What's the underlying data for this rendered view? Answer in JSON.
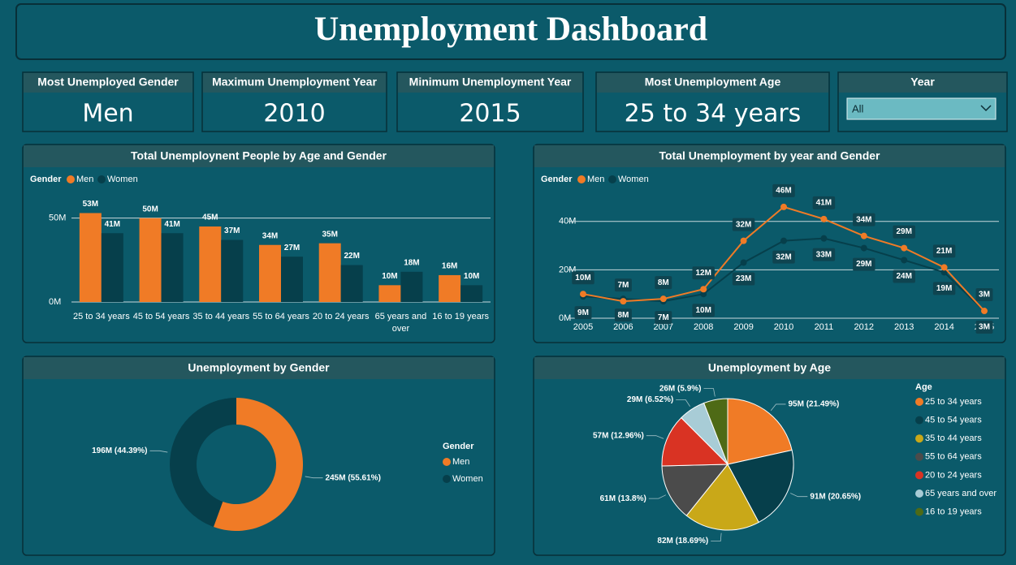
{
  "header": {
    "title": "Unemployment Dashboard"
  },
  "cards": [
    {
      "label": "Most Unemployed Gender",
      "value": "Men"
    },
    {
      "label": "Maximum Unemployment Year",
      "value": "2010"
    },
    {
      "label": "Minimum Unemployment Year",
      "value": "2015"
    },
    {
      "label": "Most Unemployment Age",
      "value": "25 to 34 years"
    }
  ],
  "slicer": {
    "label": "Year",
    "value": "All"
  },
  "chart_data": [
    {
      "type": "bar",
      "title": "Total Unemploynent People by Age and Gender",
      "legend_title": "Gender",
      "categories": [
        "25 to 34 years",
        "45 to 54 years",
        "35 to 44 years",
        "55 to 64 years",
        "20 to 24 years",
        "65 years and over",
        "16 to 19 years"
      ],
      "series": [
        {
          "name": "Men",
          "color": "#f07b26",
          "values": [
            53000000,
            50000000,
            45000000,
            34000000,
            35000000,
            10000000,
            16000000
          ],
          "value_labels": [
            "53M",
            "50M",
            "45M",
            "34M",
            "35M",
            "10M",
            "16M"
          ]
        },
        {
          "name": "Women",
          "color": "#063f4b",
          "values": [
            41000000,
            41000000,
            37000000,
            27000000,
            22000000,
            18000000,
            10000000
          ],
          "value_labels": [
            "41M",
            "41M",
            "37M",
            "27M",
            "22M",
            "18M",
            "10M"
          ]
        }
      ],
      "ylim": [
        0,
        60000000
      ],
      "yticks": [
        {
          "value": 0,
          "label": "0M"
        },
        {
          "value": 50000000,
          "label": "50M"
        }
      ],
      "grid": true
    },
    {
      "type": "line",
      "title": "Total Unemployment by year and Gender",
      "legend_title": "Gender",
      "x": [
        2005,
        2006,
        2007,
        2008,
        2009,
        2010,
        2011,
        2012,
        2013,
        2014,
        2015
      ],
      "series": [
        {
          "name": "Men",
          "color": "#f07b26",
          "values": [
            10000000,
            7000000,
            8000000,
            12000000,
            32000000,
            46000000,
            41000000,
            34000000,
            29000000,
            21000000,
            3000000
          ],
          "value_labels": [
            "10M",
            "7M",
            "8M",
            "12M",
            "32M",
            "46M",
            "41M",
            "34M",
            "29M",
            "21M",
            "3M"
          ]
        },
        {
          "name": "Women",
          "color": "#063f4b",
          "values": [
            9000000,
            8000000,
            7000000,
            10000000,
            23000000,
            32000000,
            33000000,
            29000000,
            24000000,
            19000000,
            3000000
          ],
          "value_labels": [
            "9M",
            "8M",
            "7M",
            "10M",
            "23M",
            "32M",
            "33M",
            "29M",
            "24M",
            "19M",
            "3M"
          ]
        }
      ],
      "xlim": [
        2005,
        2015
      ],
      "xticks": [
        2005,
        2006,
        2007,
        2008,
        2009,
        2010,
        2011,
        2012,
        2013,
        2014,
        2015
      ],
      "ylim": [
        0,
        50000000
      ],
      "yticks": [
        {
          "value": 0,
          "label": "0M"
        },
        {
          "value": 20000000,
          "label": "20M"
        },
        {
          "value": 40000000,
          "label": "40M"
        }
      ],
      "grid": true
    },
    {
      "type": "donut",
      "title": "Unemployment by Gender",
      "legend_title": "Gender",
      "categories": [
        "Men",
        "Women"
      ],
      "values": [
        245000000,
        196000000
      ],
      "value_labels": [
        "245M (55.61%)",
        "196M (44.39%)"
      ],
      "colors": [
        "#f07b26",
        "#063f4b"
      ]
    },
    {
      "type": "pie",
      "title": "Unemployment by Age",
      "legend_title": "Age",
      "categories": [
        "25 to 34 years",
        "45 to 54 years",
        "35 to 44 years",
        "55 to 64 years",
        "20 to 24 years",
        "65 years and over",
        "16 to 19 years"
      ],
      "values": [
        95000000,
        91000000,
        82000000,
        61000000,
        57000000,
        29000000,
        26000000
      ],
      "value_labels": [
        "95M (21.49%)",
        "91M (20.65%)",
        "82M (18.69%)",
        "61M (13.8%)",
        "57M (12.96%)",
        "29M (6.52%)",
        "26M (5.9%)"
      ],
      "colors": [
        "#f07b26",
        "#063f4b",
        "#c9a818",
        "#4b4b4b",
        "#d93323",
        "#a8ccd6",
        "#4e6a16"
      ]
    }
  ]
}
